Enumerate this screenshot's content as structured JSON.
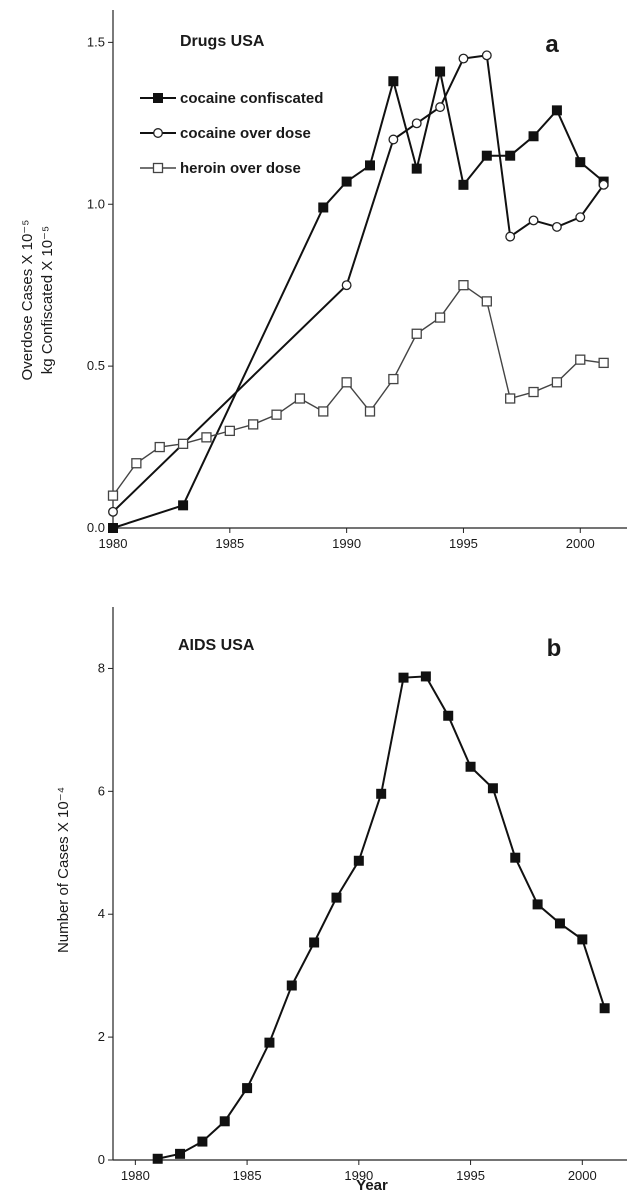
{
  "chart_data": [
    {
      "type": "line",
      "title": "Drugs USA",
      "panel_label": "a",
      "ylabel_lines": [
        "Overdose Cases X 10⁻⁵",
        "kg Confiscated X 10⁻⁵"
      ],
      "xlabel": "",
      "xlim": [
        1980,
        2002
      ],
      "ylim": [
        0,
        1.6
      ],
      "xticks": [
        1980,
        1985,
        1990,
        1995,
        2000
      ],
      "yticks": [
        0.0,
        0.5,
        1.0,
        1.5
      ],
      "ytick_labels": [
        "0.0",
        "0.5",
        "1.0",
        "1.5"
      ],
      "legend_position": "top-center",
      "series": [
        {
          "name": "cocaine confiscated",
          "marker": "filled-square",
          "x": [
            1980,
            1983,
            1989,
            1990,
            1991,
            1992,
            1993,
            1994,
            1995,
            1996,
            1997,
            1998,
            1999,
            2000,
            2001
          ],
          "y": [
            0.0,
            0.07,
            0.99,
            1.07,
            1.12,
            1.38,
            1.11,
            1.41,
            1.06,
            1.15,
            1.15,
            1.21,
            1.29,
            1.13,
            1.07
          ]
        },
        {
          "name": "cocaine over dose",
          "marker": "open-circle",
          "x": [
            1980,
            1990,
            1992,
            1993,
            1994,
            1995,
            1996,
            1997,
            1998,
            1999,
            2000,
            2001
          ],
          "y": [
            0.05,
            0.75,
            1.2,
            1.25,
            1.3,
            1.45,
            1.46,
            0.9,
            0.95,
            0.93,
            0.96,
            1.06
          ]
        },
        {
          "name": "heroin over dose",
          "marker": "open-square",
          "x": [
            1980,
            1981,
            1982,
            1983,
            1984,
            1985,
            1986,
            1987,
            1988,
            1989,
            1990,
            1991,
            1992,
            1993,
            1994,
            1995,
            1996,
            1997,
            1998,
            1999,
            2000,
            2001
          ],
          "y": [
            0.1,
            0.2,
            0.25,
            0.26,
            0.28,
            0.3,
            0.32,
            0.35,
            0.4,
            0.36,
            0.45,
            0.36,
            0.46,
            0.6,
            0.65,
            0.75,
            0.7,
            0.4,
            0.42,
            0.45,
            0.52,
            0.51
          ]
        }
      ]
    },
    {
      "type": "line",
      "title": "AIDS USA",
      "panel_label": "b",
      "ylabel": "Number of Cases X 10⁻⁴",
      "xlabel": "Year",
      "xlim": [
        1979,
        2002
      ],
      "ylim": [
        0,
        9
      ],
      "xticks": [
        1980,
        1985,
        1990,
        1995,
        2000
      ],
      "yticks": [
        0,
        2,
        4,
        6,
        8
      ],
      "ytick_labels": [
        "0",
        "2",
        "4",
        "6",
        "8"
      ],
      "series": [
        {
          "marker": "filled-square",
          "x": [
            1981,
            1982,
            1983,
            1984,
            1985,
            1986,
            1987,
            1988,
            1989,
            1990,
            1991,
            1992,
            1993,
            1994,
            1995,
            1996,
            1997,
            1998,
            1999,
            2000,
            2001
          ],
          "y": [
            0.02,
            0.1,
            0.3,
            0.63,
            1.17,
            1.91,
            2.84,
            3.54,
            4.27,
            4.87,
            5.96,
            7.85,
            7.87,
            7.23,
            6.4,
            6.05,
            4.92,
            4.16,
            3.85,
            3.59,
            2.47
          ]
        }
      ]
    }
  ]
}
